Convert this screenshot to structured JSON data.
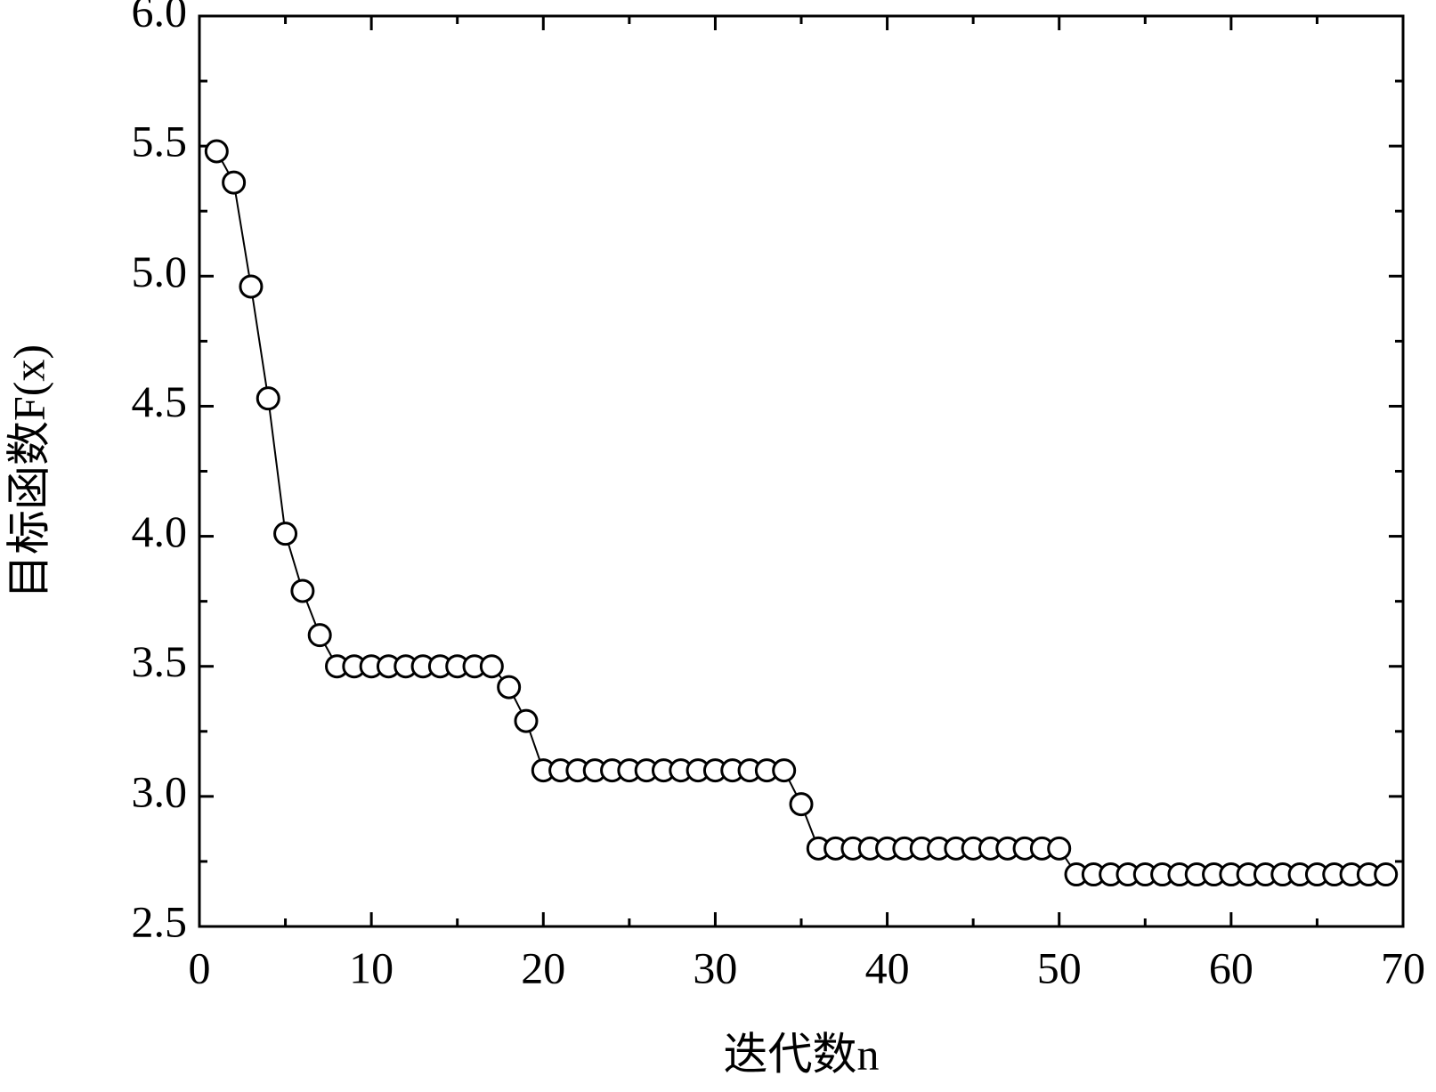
{
  "chart_data": {
    "type": "line",
    "xlabel": "迭代数n",
    "ylabel": "目标函数F(x)",
    "x": [
      1,
      2,
      3,
      4,
      5,
      6,
      7,
      8,
      9,
      10,
      11,
      12,
      13,
      14,
      15,
      16,
      17,
      18,
      19,
      20,
      21,
      22,
      23,
      24,
      25,
      26,
      27,
      28,
      29,
      30,
      31,
      32,
      33,
      34,
      35,
      36,
      37,
      38,
      39,
      40,
      41,
      42,
      43,
      44,
      45,
      46,
      47,
      48,
      49,
      50,
      51,
      52,
      53,
      54,
      55,
      56,
      57,
      58,
      59,
      60,
      61,
      62,
      63,
      64,
      65,
      66,
      67,
      68,
      69
    ],
    "series": [
      {
        "color": "#000000",
        "values": [
          5.48,
          5.36,
          4.96,
          4.53,
          4.01,
          3.79,
          3.62,
          3.5,
          3.5,
          3.5,
          3.5,
          3.5,
          3.5,
          3.5,
          3.5,
          3.5,
          3.5,
          3.42,
          3.29,
          3.1,
          3.1,
          3.1,
          3.1,
          3.1,
          3.1,
          3.1,
          3.1,
          3.1,
          3.1,
          3.1,
          3.1,
          3.1,
          3.1,
          3.1,
          2.97,
          2.8,
          2.8,
          2.8,
          2.8,
          2.8,
          2.8,
          2.8,
          2.8,
          2.8,
          2.8,
          2.8,
          2.8,
          2.8,
          2.8,
          2.8,
          2.7,
          2.7,
          2.7,
          2.7,
          2.7,
          2.7,
          2.7,
          2.7,
          2.7,
          2.7,
          2.7,
          2.7,
          2.7,
          2.7,
          2.7,
          2.7,
          2.7,
          2.7,
          2.7
        ]
      }
    ],
    "xlim": [
      0,
      70
    ],
    "xticks": [
      0,
      10,
      20,
      30,
      40,
      50,
      60,
      70
    ],
    "ylim": [
      2.5,
      6.0
    ],
    "yticks": [
      {
        "value": 2.5,
        "label": "2.5"
      },
      {
        "value": 3.0,
        "label": "3.0"
      },
      {
        "value": 3.5,
        "label": "3.5"
      },
      {
        "value": 4.0,
        "label": "4.0"
      },
      {
        "value": 4.5,
        "label": "4.5"
      },
      {
        "value": 5.0,
        "label": "5.0"
      },
      {
        "value": 5.5,
        "label": "5.5"
      },
      {
        "value": 6.0,
        "label": "6.0"
      }
    ],
    "grid": false
  }
}
